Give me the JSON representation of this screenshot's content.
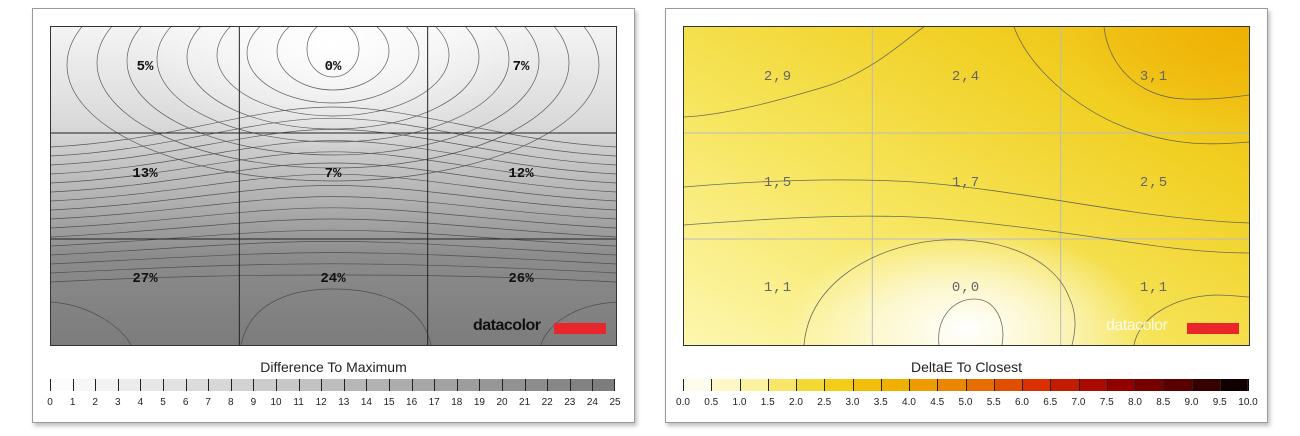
{
  "chart_data": [
    {
      "type": "heatmap",
      "title": "Difference To Maximum",
      "grid": {
        "rows": 3,
        "cols": 3,
        "cells": [
          [
            "5%",
            "0%",
            "7%"
          ],
          [
            "13%",
            "7%",
            "12%"
          ],
          [
            "27%",
            "24%",
            "26%"
          ]
        ],
        "values": [
          [
            5,
            0,
            7
          ],
          [
            13,
            7,
            12
          ],
          [
            27,
            24,
            26
          ]
        ]
      },
      "scale": {
        "ticks": [
          "0",
          "1",
          "2",
          "3",
          "4",
          "5",
          "6",
          "7",
          "8",
          "9",
          "10",
          "11",
          "12",
          "13",
          "14",
          "15",
          "16",
          "17",
          "18",
          "19",
          "20",
          "21",
          "22",
          "23",
          "24",
          "25"
        ],
        "colors": [
          "#ffffff",
          "#7a7a7a"
        ]
      },
      "logo": "datacolor",
      "colors": {
        "low": "#f8f8f8",
        "high": "#767676",
        "logo_accent": "#e8262b"
      }
    },
    {
      "type": "heatmap",
      "title": "DeltaE To Closest",
      "grid": {
        "rows": 3,
        "cols": 3,
        "cells": [
          [
            "2,9",
            "2,4",
            "3,1"
          ],
          [
            "1,5",
            "1,7",
            "2,5"
          ],
          [
            "1,1",
            "0,0",
            "1,1"
          ]
        ],
        "values": [
          [
            2.9,
            2.4,
            3.1
          ],
          [
            1.5,
            1.7,
            2.5
          ],
          [
            1.1,
            0.0,
            1.1
          ]
        ]
      },
      "scale": {
        "ticks": [
          "0.0",
          "0.5",
          "1.0",
          "1.5",
          "2.0",
          "2.5",
          "3.0",
          "3.5",
          "4.0",
          "4.5",
          "5.0",
          "5.5",
          "6.0",
          "6.5",
          "7.0",
          "7.5",
          "8.0",
          "8.5",
          "9.0",
          "9.5",
          "10.0"
        ],
        "colors": [
          "#ffffff",
          "#fbf2a0",
          "#f2d31a",
          "#f0b000",
          "#ea7c00",
          "#d93000",
          "#a00000",
          "#5a0000",
          "#000000"
        ]
      },
      "logo": "datacolor",
      "colors": {
        "low": "#ffffff",
        "high": "#f0b000",
        "logo_accent": "#e8262b"
      }
    }
  ]
}
